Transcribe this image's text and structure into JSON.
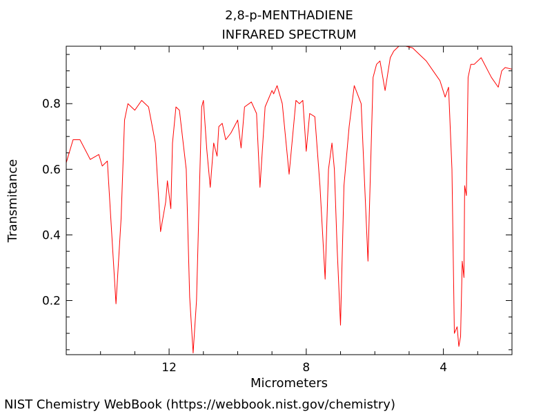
{
  "chart_data": {
    "type": "line",
    "title": "2,8-p-MENTHADIENE",
    "subtitle": "INFRARED SPECTRUM",
    "xlabel": "Micrometers",
    "ylabel": "Transmitance",
    "xlim": [
      15.0,
      2.0
    ],
    "ylim": [
      0.035,
      0.975
    ],
    "x_reversed": true,
    "grid": false,
    "x_ticks": [
      12,
      8,
      4
    ],
    "x_tick_labels": [
      "12",
      "8",
      "4"
    ],
    "y_ticks": [
      0.2,
      0.4,
      0.6,
      0.8
    ],
    "y_tick_labels": [
      "0.2",
      "0.4",
      "0.6",
      "0.8"
    ],
    "line_color": "#ff0000",
    "series": [
      {
        "x": [
          15.0,
          14.8,
          14.6,
          14.3,
          14.05,
          13.95,
          13.8,
          13.7,
          13.55,
          13.4,
          13.3,
          13.2,
          13.0,
          12.8,
          12.6,
          12.4,
          12.25,
          12.1,
          12.05,
          11.95,
          11.9,
          11.8,
          11.7,
          11.5,
          11.4,
          11.3,
          11.2,
          11.15,
          11.1,
          11.05,
          11.0,
          10.9,
          10.8,
          10.7,
          10.6,
          10.55,
          10.45,
          10.35,
          10.2,
          10.0,
          9.9,
          9.8,
          9.6,
          9.45,
          9.35,
          9.2,
          9.0,
          8.95,
          8.85,
          8.7,
          8.5,
          8.3,
          8.2,
          8.1,
          8.0,
          7.9,
          7.75,
          7.6,
          7.45,
          7.35,
          7.25,
          7.18,
          7.1,
          7.0,
          6.9,
          6.75,
          6.6,
          6.4,
          6.2,
          6.05,
          5.95,
          5.85,
          5.7,
          5.55,
          5.45,
          5.3,
          5.1,
          4.9,
          4.7,
          4.5,
          4.3,
          4.1,
          3.95,
          3.85,
          3.75,
          3.68,
          3.6,
          3.55,
          3.5,
          3.45,
          3.4,
          3.38,
          3.33,
          3.28,
          3.2,
          3.1,
          2.9,
          2.7,
          2.6,
          2.4,
          2.3,
          2.2,
          2.0
        ],
        "y": [
          0.62,
          0.69,
          0.69,
          0.63,
          0.645,
          0.61,
          0.625,
          0.45,
          0.19,
          0.45,
          0.75,
          0.8,
          0.78,
          0.81,
          0.79,
          0.68,
          0.41,
          0.5,
          0.565,
          0.48,
          0.68,
          0.79,
          0.78,
          0.6,
          0.21,
          0.04,
          0.2,
          0.4,
          0.6,
          0.79,
          0.81,
          0.66,
          0.545,
          0.68,
          0.64,
          0.73,
          0.74,
          0.69,
          0.71,
          0.75,
          0.665,
          0.79,
          0.805,
          0.77,
          0.545,
          0.79,
          0.84,
          0.83,
          0.855,
          0.8,
          0.585,
          0.81,
          0.8,
          0.81,
          0.655,
          0.77,
          0.76,
          0.55,
          0.265,
          0.6,
          0.68,
          0.6,
          0.36,
          0.125,
          0.55,
          0.73,
          0.855,
          0.8,
          0.32,
          0.88,
          0.92,
          0.93,
          0.84,
          0.94,
          0.96,
          0.975,
          0.975,
          0.97,
          0.95,
          0.93,
          0.9,
          0.87,
          0.82,
          0.85,
          0.6,
          0.1,
          0.12,
          0.06,
          0.09,
          0.32,
          0.27,
          0.55,
          0.52,
          0.88,
          0.92,
          0.92,
          0.94,
          0.9,
          0.88,
          0.85,
          0.9,
          0.91,
          0.905
        ]
      }
    ]
  },
  "footer": {
    "credit": "NIST Chemistry WebBook (https://webbook.nist.gov/chemistry)"
  }
}
